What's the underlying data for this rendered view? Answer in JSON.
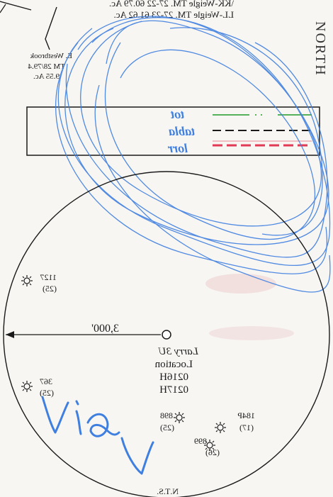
{
  "header": {
    "line1": "\\KK-Weigle TM. 27-22 60.79 Ac.",
    "line2": "LL-Weigle TM. 27-23 61.62 Ac."
  },
  "north_label": "NORTH",
  "parcel": {
    "name": "E. Westbrook",
    "tract": "TM 28/79.4",
    "acres": "9.55 Ac."
  },
  "legend": {
    "handwritten": [
      "tot",
      "tabla",
      "lorr"
    ]
  },
  "radius_label": "3,000'",
  "location": {
    "name": "Larry 3U",
    "label": "Location",
    "ids": [
      "0216H",
      "0217H"
    ]
  },
  "wells": [
    {
      "id": "1127",
      "depth": "(25)"
    },
    {
      "id": "367",
      "depth": "(25)"
    },
    {
      "id": "898",
      "depth": "(25)"
    },
    {
      "id": "184P",
      "depth": "(17)"
    },
    {
      "id": "899",
      "depth": "(26)"
    }
  ],
  "signature": "Vial",
  "footer": "N.T.S.",
  "colors": {
    "ink": "#1a1a1a",
    "pen_blue": "#3f7fe0",
    "legend_green": "#55b25a",
    "legend_red": "#e23a55"
  }
}
